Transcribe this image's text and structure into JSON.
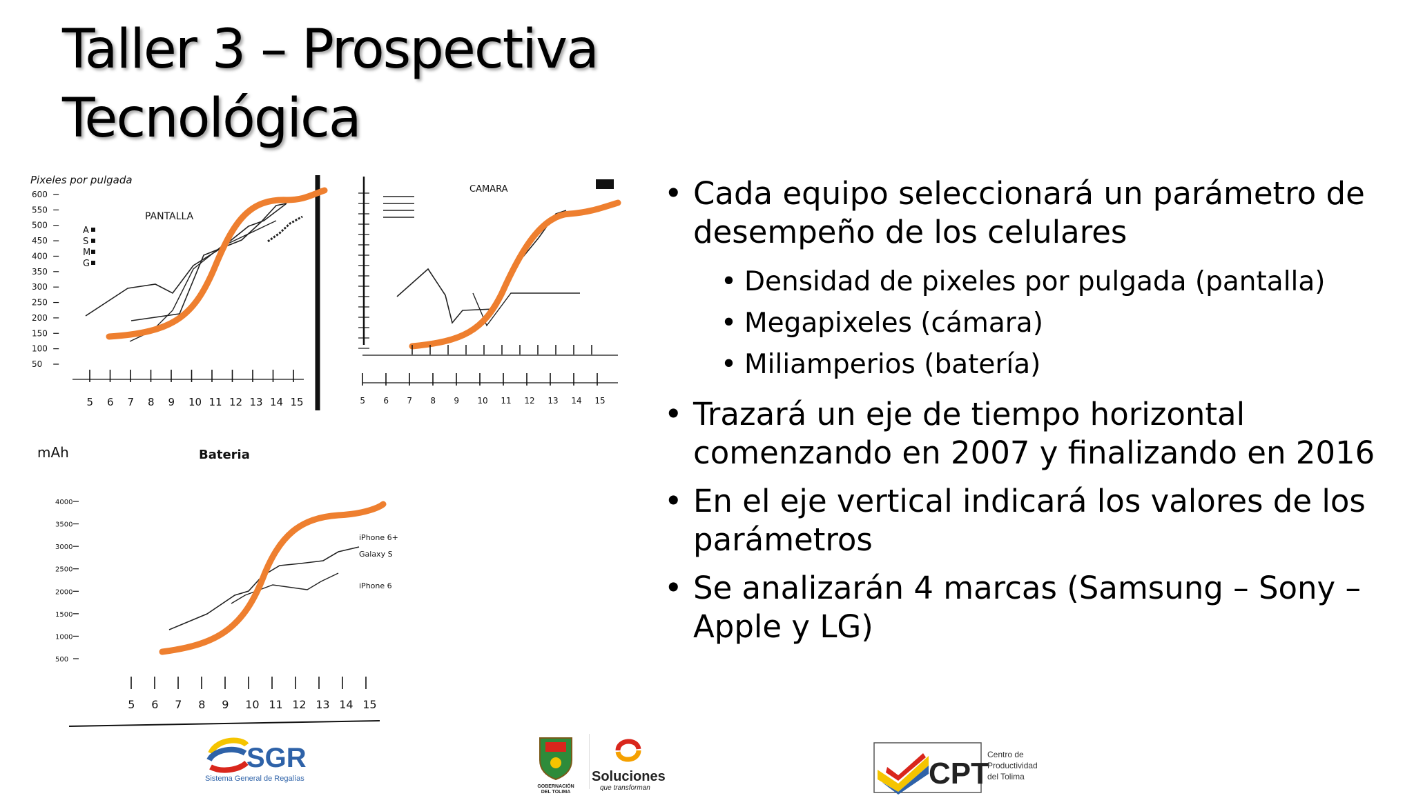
{
  "slide": {
    "title_lines": [
      "Taller 3 – Prospectiva",
      "Tecnológica"
    ]
  },
  "sketches": {
    "pantalla": {
      "title": "PANTALLA",
      "ylabel": "Pixeles por pulgada",
      "y_ticks": [
        "600",
        "550",
        "500",
        "450",
        "400",
        "350",
        "300",
        "250",
        "200",
        "150",
        "100",
        "50"
      ],
      "x_ticks": [
        "5",
        "6",
        "7",
        "8",
        "9",
        "10",
        "11",
        "12",
        "13",
        "14",
        "15"
      ],
      "legend": [
        "A",
        "S",
        "M",
        "G"
      ]
    },
    "camara": {
      "title": "CAMARA",
      "x_ticks": [
        "5",
        "6",
        "7",
        "8",
        "9",
        "10",
        "11",
        "12",
        "13",
        "14",
        "15"
      ]
    },
    "bateria": {
      "title": "Bateria",
      "ylabel": "mAh",
      "y_ticks": [
        "4000",
        "3500",
        "3000",
        "2500",
        "2000",
        "1500",
        "1000",
        "500"
      ],
      "x_ticks": [
        "5",
        "6",
        "7",
        "8",
        "9",
        "10",
        "11",
        "12",
        "13",
        "14",
        "15"
      ],
      "annotations": [
        "iPhone 6+",
        "Galaxy S",
        "iPhone 6"
      ]
    }
  },
  "bullets": [
    {
      "text": "Cada equipo seleccionará un parámetro de desempeño de los celulares",
      "sub": [
        "Densidad de pixeles por pulgada (pantalla)",
        "Megapixeles (cámara)",
        "Miliamperios (batería)"
      ]
    },
    {
      "text": "Trazará un eje de tiempo horizontal comenzando en 2007 y finalizando en 2016"
    },
    {
      "text": "En el eje vertical indicará los valores de los parámetros"
    },
    {
      "text": "Se analizarán 4 marcas (Samsung – Sony – Apple y LG)"
    }
  ],
  "logos": {
    "sgr": {
      "name": "SGR",
      "caption": "Sistema General de Regalías"
    },
    "tolima": {
      "caption_1": "GOBERNACIÓN",
      "caption_2": "DEL TOLIMA"
    },
    "soluciones": {
      "name": "Soluciones",
      "tagline": "que transforman"
    },
    "cpt": {
      "name": "CPT",
      "line1": "Centro de",
      "line2": "Productividad",
      "line3": "del Tolima"
    }
  },
  "colors": {
    "s_curve": "#EE7F2F",
    "sgr_blue": "#2E62A8",
    "sgr_yellow": "#F5C400",
    "sgr_red": "#D9261C"
  }
}
